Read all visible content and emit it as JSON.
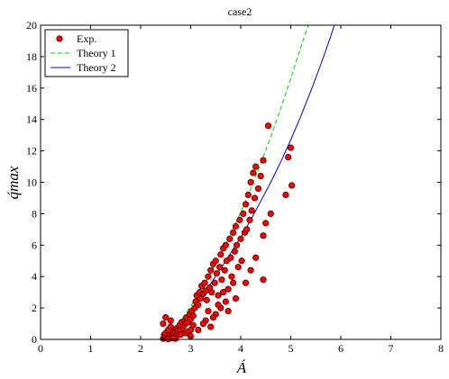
{
  "chart_data": {
    "type": "scatter",
    "title": "case2",
    "xlabel": "Á",
    "ylabel": "q́max",
    "xlim": [
      0,
      8
    ],
    "ylim": [
      0,
      20
    ],
    "xticks": [
      "0",
      "1",
      "2",
      "3",
      "4",
      "5",
      "6",
      "7",
      "8"
    ],
    "yticks": [
      "0",
      "2",
      "4",
      "6",
      "8",
      "10",
      "12",
      "14",
      "16",
      "18",
      "20"
    ],
    "grid": false,
    "legend_position": "top-left",
    "colors": {
      "exp_fill": "#ff0000",
      "exp_edge": "#3a0000",
      "theory1": "#00cc00",
      "theory2": "#0000cc"
    },
    "series": [
      {
        "name": "Exp.",
        "kind": "scatter",
        "points": [
          [
            2.45,
            0.05
          ],
          [
            2.48,
            0.1
          ],
          [
            2.5,
            0.2
          ],
          [
            2.52,
            0.15
          ],
          [
            2.47,
            0.3
          ],
          [
            2.55,
            0.25
          ],
          [
            2.5,
            0.4
          ],
          [
            2.58,
            0.35
          ],
          [
            2.6,
            0.1
          ],
          [
            2.62,
            0.5
          ],
          [
            2.65,
            0.3
          ],
          [
            2.55,
            0.6
          ],
          [
            2.68,
            0.45
          ],
          [
            2.7,
            0.2
          ],
          [
            2.72,
            0.7
          ],
          [
            2.75,
            0.55
          ],
          [
            2.6,
            0.8
          ],
          [
            2.78,
            0.9
          ],
          [
            2.8,
            0.6
          ],
          [
            2.82,
            1.1
          ],
          [
            2.85,
            0.8
          ],
          [
            2.88,
            1.2
          ],
          [
            2.9,
            1.0
          ],
          [
            2.92,
            1.4
          ],
          [
            2.95,
            1.1
          ],
          [
            2.98,
            1.6
          ],
          [
            3.0,
            1.3
          ],
          [
            3.02,
            1.8
          ],
          [
            3.05,
            1.5
          ],
          [
            3.08,
            2.0
          ],
          [
            2.5,
            1.4
          ],
          [
            2.45,
            1.0
          ],
          [
            2.6,
            1.2
          ],
          [
            2.7,
            0.05
          ],
          [
            2.8,
            0.3
          ],
          [
            2.9,
            0.4
          ],
          [
            2.95,
            0.5
          ],
          [
            3.0,
            0.6
          ],
          [
            2.55,
            0.02
          ],
          [
            2.65,
            0.08
          ],
          [
            3.1,
            2.4
          ],
          [
            3.12,
            2.8
          ],
          [
            3.15,
            2.2
          ],
          [
            3.18,
            3.0
          ],
          [
            3.2,
            2.6
          ],
          [
            3.22,
            3.4
          ],
          [
            3.25,
            2.9
          ],
          [
            3.28,
            3.6
          ],
          [
            3.3,
            3.1
          ],
          [
            3.32,
            2.5
          ],
          [
            3.35,
            4.0
          ],
          [
            3.38,
            3.3
          ],
          [
            3.4,
            4.4
          ],
          [
            3.42,
            3.0
          ],
          [
            3.45,
            4.8
          ],
          [
            3.48,
            3.6
          ],
          [
            3.5,
            5.0
          ],
          [
            3.52,
            4.2
          ],
          [
            3.55,
            2.8
          ],
          [
            3.58,
            4.6
          ],
          [
            3.6,
            5.4
          ],
          [
            3.62,
            3.8
          ],
          [
            3.65,
            5.8
          ],
          [
            3.68,
            4.4
          ],
          [
            3.7,
            6.0
          ],
          [
            3.72,
            5.0
          ],
          [
            3.75,
            3.2
          ],
          [
            3.78,
            6.4
          ],
          [
            3.8,
            5.2
          ],
          [
            3.82,
            4.0
          ],
          [
            3.85,
            6.8
          ],
          [
            3.88,
            5.6
          ],
          [
            3.9,
            7.2
          ],
          [
            3.92,
            6.0
          ],
          [
            3.95,
            4.6
          ],
          [
            3.98,
            7.6
          ],
          [
            4.0,
            6.4
          ],
          [
            4.02,
            5.0
          ],
          [
            4.05,
            8.0
          ],
          [
            4.08,
            6.8
          ],
          [
            4.1,
            8.6
          ],
          [
            4.12,
            7.0
          ],
          [
            4.15,
            9.2
          ],
          [
            4.18,
            7.6
          ],
          [
            4.2,
            10.0
          ],
          [
            4.22,
            8.2
          ],
          [
            4.25,
            10.6
          ],
          [
            4.28,
            9.0
          ],
          [
            4.3,
            11.0
          ],
          [
            4.35,
            9.6
          ],
          [
            4.4,
            10.4
          ],
          [
            4.45,
            11.4
          ],
          [
            4.5,
            7.4
          ],
          [
            4.55,
            13.6
          ],
          [
            4.6,
            8.0
          ],
          [
            4.45,
            3.8
          ],
          [
            4.9,
            9.2
          ],
          [
            4.95,
            11.6
          ],
          [
            5.0,
            12.2
          ],
          [
            5.02,
            9.8
          ],
          [
            4.45,
            6.6
          ],
          [
            4.3,
            5.2
          ],
          [
            4.2,
            4.4
          ],
          [
            4.1,
            3.6
          ],
          [
            3.3,
            1.2
          ],
          [
            3.4,
            0.8
          ],
          [
            3.5,
            1.6
          ],
          [
            3.6,
            2.0
          ],
          [
            3.7,
            2.4
          ],
          [
            3.75,
            1.8
          ],
          [
            3.9,
            2.6
          ],
          [
            3.85,
            3.6
          ],
          [
            3.65,
            3.0
          ],
          [
            3.55,
            2.2
          ],
          [
            3.45,
            1.4
          ],
          [
            3.35,
            1.8
          ],
          [
            3.25,
            1.0
          ],
          [
            3.15,
            0.6
          ],
          [
            3.05,
            0.9
          ],
          [
            3.0,
            0.2
          ]
        ]
      },
      {
        "name": "Theory 1",
        "kind": "line",
        "style": "dashed",
        "points": [
          [
            2.45,
            0.0
          ],
          [
            2.6,
            0.45
          ],
          [
            2.8,
            1.2
          ],
          [
            3.0,
            2.1
          ],
          [
            3.2,
            3.1
          ],
          [
            3.4,
            4.2
          ],
          [
            3.6,
            5.4
          ],
          [
            3.8,
            6.7
          ],
          [
            4.0,
            8.1
          ],
          [
            4.2,
            9.6
          ],
          [
            4.4,
            11.2
          ],
          [
            4.6,
            12.9
          ],
          [
            4.8,
            14.7
          ],
          [
            5.0,
            16.6
          ],
          [
            5.2,
            18.6
          ],
          [
            5.35,
            20.0
          ]
        ]
      },
      {
        "name": "Theory 2",
        "kind": "line",
        "style": "solid",
        "points": [
          [
            2.45,
            0.0
          ],
          [
            2.6,
            0.4
          ],
          [
            2.8,
            1.05
          ],
          [
            3.0,
            1.8
          ],
          [
            3.2,
            2.65
          ],
          [
            3.4,
            3.55
          ],
          [
            3.6,
            4.5
          ],
          [
            3.8,
            5.5
          ],
          [
            4.0,
            6.5
          ],
          [
            4.2,
            7.6
          ],
          [
            4.4,
            8.8
          ],
          [
            4.6,
            10.0
          ],
          [
            4.8,
            11.3
          ],
          [
            5.0,
            12.7
          ],
          [
            5.2,
            14.2
          ],
          [
            5.4,
            15.8
          ],
          [
            5.6,
            17.5
          ],
          [
            5.8,
            19.3
          ],
          [
            5.87,
            20.0
          ]
        ]
      }
    ]
  }
}
